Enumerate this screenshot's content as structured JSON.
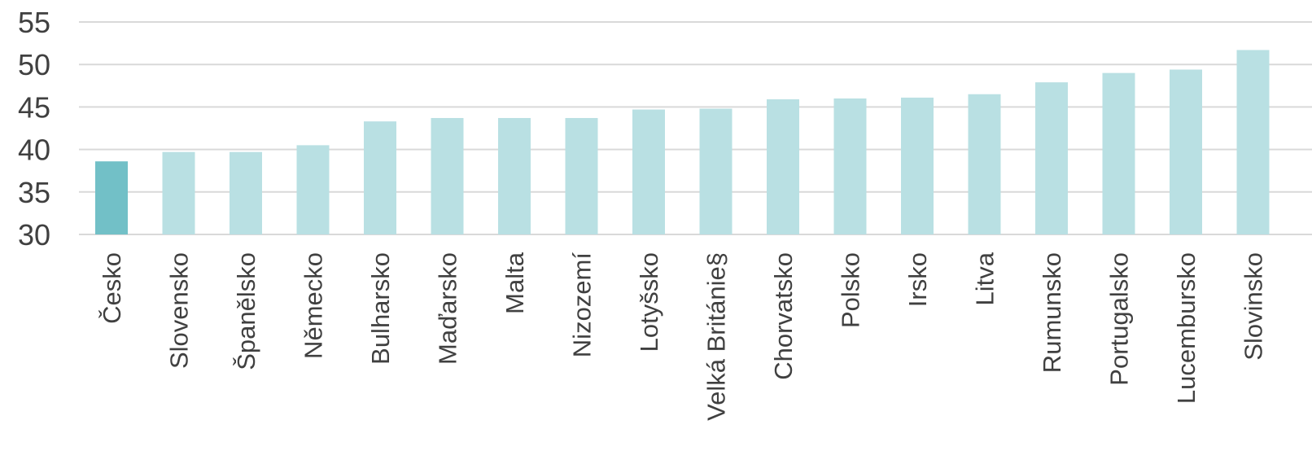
{
  "chart_data": {
    "type": "bar",
    "categories": [
      "Česko",
      "Slovensko",
      "Španělsko",
      "Německo",
      "Bulharsko",
      "Maďarsko",
      "Malta",
      "Nizozemí",
      "Lotyšsko",
      "Velká Britániе§",
      "Chorvatsko",
      "Polsko",
      "Irsko",
      "Litva",
      "Rumunsko",
      "Portugalsko",
      "Lucembursko",
      "Slovinsko"
    ],
    "values": [
      38.6,
      39.7,
      39.7,
      40.5,
      43.3,
      43.7,
      43.7,
      43.7,
      44.7,
      44.8,
      45.9,
      46.0,
      46.1,
      46.5,
      47.9,
      49.0,
      49.4,
      51.7
    ],
    "title": "",
    "xlabel": "",
    "ylabel": "",
    "ylim": [
      30,
      55
    ],
    "yticks": [
      "30",
      "35",
      "40",
      "45",
      "50",
      "55"
    ],
    "grid": true,
    "colors": {
      "highlight": "#72c0c7",
      "default": "#b9e0e3",
      "grid": "#d9d9d9",
      "text": "#404040"
    },
    "highlight_index": 0
  }
}
